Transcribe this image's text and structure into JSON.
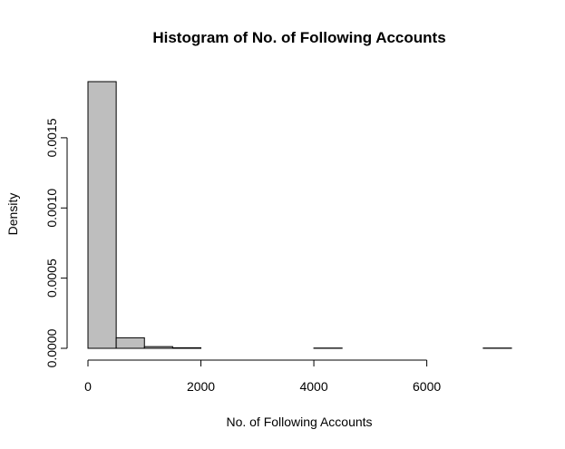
{
  "chart_data": {
    "type": "bar",
    "title": "Histogram of No. of Following Accounts",
    "xlabel": "No. of Following Accounts",
    "ylabel": "Density",
    "xlim": [
      0,
      7500
    ],
    "ylim": [
      0,
      0.0019
    ],
    "x_ticks": [
      0,
      2000,
      4000,
      6000
    ],
    "x_tick_labels": [
      "0",
      "2000",
      "4000",
      "6000"
    ],
    "y_ticks": [
      0,
      0.0005,
      0.001,
      0.0015
    ],
    "y_tick_labels": [
      "0.0000",
      "0.0005",
      "0.0010",
      "0.0015"
    ],
    "bin_edges": [
      0,
      500,
      1000,
      1500,
      2000,
      2500,
      3000,
      3500,
      4000,
      4500,
      5000,
      5500,
      6000,
      6500,
      7000,
      7500
    ],
    "values": [
      0.0019,
      7.5e-05,
      1.2e-05,
      4e-06,
      0,
      0,
      0,
      0,
      2e-06,
      0,
      0,
      0,
      0,
      0,
      2e-06
    ],
    "bar_color": "#bebebe",
    "grid": false,
    "legend": "none"
  }
}
